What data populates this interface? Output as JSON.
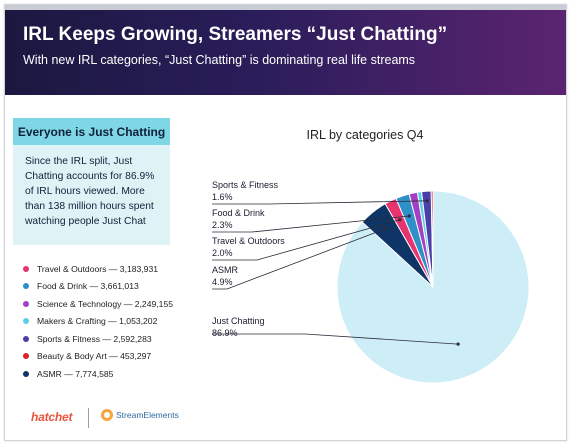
{
  "header": {
    "title": "IRL Keeps Growing, Streamers “Just Chatting”",
    "subtitle": "With new IRL categories, “Just Chatting” is dominating real life streams"
  },
  "callout": {
    "heading": "Everyone is Just Chatting",
    "body": "Since the IRL split, Just Chatting accounts for 86.9% of IRL hours viewed. More than 138 million hours spent watching people Just Chat"
  },
  "legend": {
    "items": [
      {
        "label": "Travel & Outdoors — 3,183,931",
        "color": "#e8336e"
      },
      {
        "label": "Food & Drink — 3,661,013",
        "color": "#2f8fc7"
      },
      {
        "label": "Science & Technology — 2,249,155",
        "color": "#a23fc2"
      },
      {
        "label": "Makers & Crafting — 1,053,202",
        "color": "#5ccfe6"
      },
      {
        "label": "Sports & Fitness — 2,592,283",
        "color": "#4a3fa8"
      },
      {
        "label": "Beauty & Body Art — 453,297",
        "color": "#d9222a"
      },
      {
        "label": "ASMR — 7,774,585",
        "color": "#0f3566"
      }
    ]
  },
  "chart_data": {
    "type": "pie",
    "title": "IRL by categories Q4",
    "slices": [
      {
        "name": "Just Chatting",
        "value": 86.9,
        "color": "#cdeef7",
        "label": "Just Chatting",
        "value_label": "86.9%"
      },
      {
        "name": "ASMR",
        "value": 4.9,
        "color": "#0f3566",
        "label": "ASMR",
        "value_label": "4.9%"
      },
      {
        "name": "Travel & Outdoors",
        "value": 2.0,
        "color": "#e8336e",
        "label": "Travel & Outdoors",
        "value_label": "2.0%"
      },
      {
        "name": "Food & Drink",
        "value": 2.3,
        "color": "#2f8fc7",
        "label": "Food & Drink",
        "value_label": "2.3%"
      },
      {
        "name": "Science & Technology",
        "value": 1.4,
        "color": "#a23fc2"
      },
      {
        "name": "Makers & Crafting",
        "value": 0.7,
        "color": "#5ccfe6"
      },
      {
        "name": "Sports & Fitness",
        "value": 1.6,
        "color": "#4a3fa8",
        "label": "Sports & Fitness",
        "value_label": "1.6%"
      },
      {
        "name": "Beauty & Body Art",
        "value": 0.3,
        "color": "#d9222a"
      }
    ]
  },
  "footer": {
    "brand1": "hatchet",
    "brand2": "StreamElements"
  }
}
